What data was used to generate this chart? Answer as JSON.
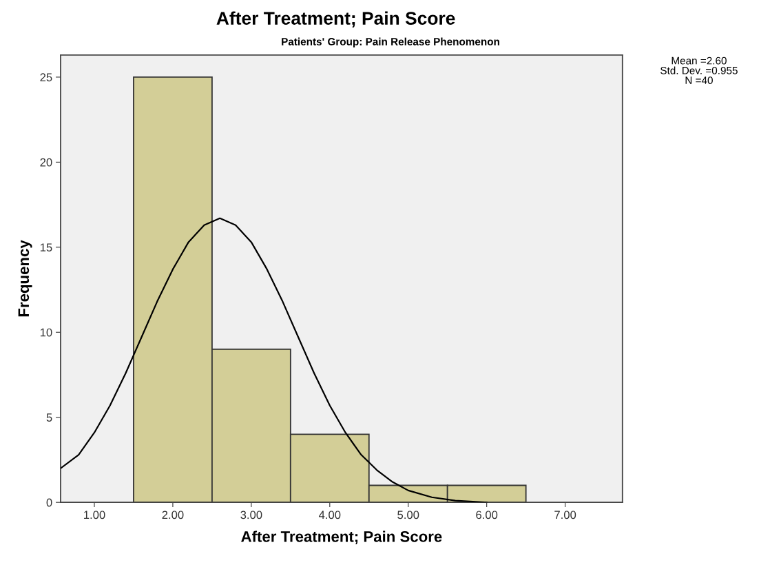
{
  "chart_data": {
    "type": "histogram",
    "title": "After Treatment; Pain Score",
    "subtitle": "Patients' Group: Pain Release Phenomenon",
    "xlabel": "After Treatment; Pain Score",
    "ylabel": "Frequency",
    "bins": [
      1.5,
      2.5,
      3.5,
      4.5,
      5.5,
      6.5
    ],
    "series": [
      {
        "color": "#d3ce97",
        "values": [
          25,
          9,
          4,
          1,
          1
        ]
      },
      {
        "type": "line",
        "color": "#000000",
        "x": [
          0.57,
          0.8,
          1.0,
          1.2,
          1.4,
          1.6,
          1.8,
          2.0,
          2.2,
          2.4,
          2.6,
          2.8,
          3.0,
          3.2,
          3.4,
          3.6,
          3.8,
          4.0,
          4.2,
          4.4,
          4.6,
          4.8,
          5.0,
          5.3,
          5.6,
          6.0
        ],
        "values": [
          2.0,
          2.8,
          4.1,
          5.7,
          7.6,
          9.7,
          11.8,
          13.7,
          15.3,
          16.3,
          16.7,
          16.3,
          15.3,
          13.7,
          11.8,
          9.7,
          7.6,
          5.7,
          4.1,
          2.8,
          1.9,
          1.2,
          0.7,
          0.3,
          0.1,
          0
        ]
      }
    ],
    "xlim": [
      0.57,
      7.73
    ],
    "ylim": [
      0,
      26.3
    ],
    "xticks": [
      {
        "value": 1,
        "label": "1.00"
      },
      {
        "value": 2,
        "label": "2.00"
      },
      {
        "value": 3,
        "label": "3.00"
      },
      {
        "value": 4,
        "label": "4.00"
      },
      {
        "value": 5,
        "label": "5.00"
      },
      {
        "value": 6,
        "label": "6.00"
      },
      {
        "value": 7,
        "label": "7.00"
      }
    ],
    "yticks": [
      0,
      5,
      10,
      15,
      20,
      25
    ],
    "annotations": [
      "Mean =2.60",
      "Std. Dev. =0.955",
      "N =40"
    ],
    "grid": false,
    "legend": false
  }
}
